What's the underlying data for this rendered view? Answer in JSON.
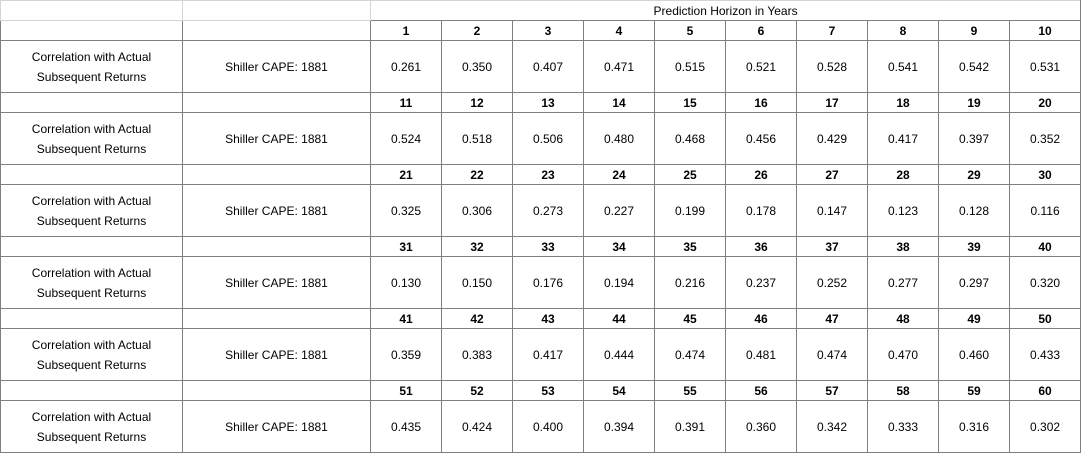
{
  "table": {
    "header": "Prediction Horizon in Years",
    "blocks": [
      {
        "horizons": [
          1,
          2,
          3,
          4,
          5,
          6,
          7,
          8,
          9,
          10
        ],
        "label": "Correlation with Actual Subsequent Returns",
        "series": "Shiller CAPE: 1881",
        "values": [
          "0.261",
          "0.350",
          "0.407",
          "0.471",
          "0.515",
          "0.521",
          "0.528",
          "0.541",
          "0.542",
          "0.531"
        ]
      },
      {
        "horizons": [
          11,
          12,
          13,
          14,
          15,
          16,
          17,
          18,
          19,
          20
        ],
        "label": "Correlation with Actual Subsequent Returns",
        "series": "Shiller CAPE: 1881",
        "values": [
          "0.524",
          "0.518",
          "0.506",
          "0.480",
          "0.468",
          "0.456",
          "0.429",
          "0.417",
          "0.397",
          "0.352"
        ]
      },
      {
        "horizons": [
          21,
          22,
          23,
          24,
          25,
          26,
          27,
          28,
          29,
          30
        ],
        "label": "Correlation with Actual Subsequent Returns",
        "series": "Shiller CAPE: 1881",
        "values": [
          "0.325",
          "0.306",
          "0.273",
          "0.227",
          "0.199",
          "0.178",
          "0.147",
          "0.123",
          "0.128",
          "0.116"
        ]
      },
      {
        "horizons": [
          31,
          32,
          33,
          34,
          35,
          36,
          37,
          38,
          39,
          40
        ],
        "label": "Correlation with Actual Subsequent Returns",
        "series": "Shiller CAPE: 1881",
        "values": [
          "0.130",
          "0.150",
          "0.176",
          "0.194",
          "0.216",
          "0.237",
          "0.252",
          "0.277",
          "0.297",
          "0.320"
        ]
      },
      {
        "horizons": [
          41,
          42,
          43,
          44,
          45,
          46,
          47,
          48,
          49,
          50
        ],
        "label": "Correlation with Actual Subsequent Returns",
        "series": "Shiller CAPE: 1881",
        "values": [
          "0.359",
          "0.383",
          "0.417",
          "0.444",
          "0.474",
          "0.481",
          "0.474",
          "0.470",
          "0.460",
          "0.433"
        ]
      },
      {
        "horizons": [
          51,
          52,
          53,
          54,
          55,
          56,
          57,
          58,
          59,
          60
        ],
        "label": "Correlation with Actual Subsequent Returns",
        "series": "Shiller CAPE: 1881",
        "values": [
          "0.435",
          "0.424",
          "0.400",
          "0.394",
          "0.391",
          "0.360",
          "0.342",
          "0.333",
          "0.316",
          "0.302"
        ]
      }
    ]
  }
}
